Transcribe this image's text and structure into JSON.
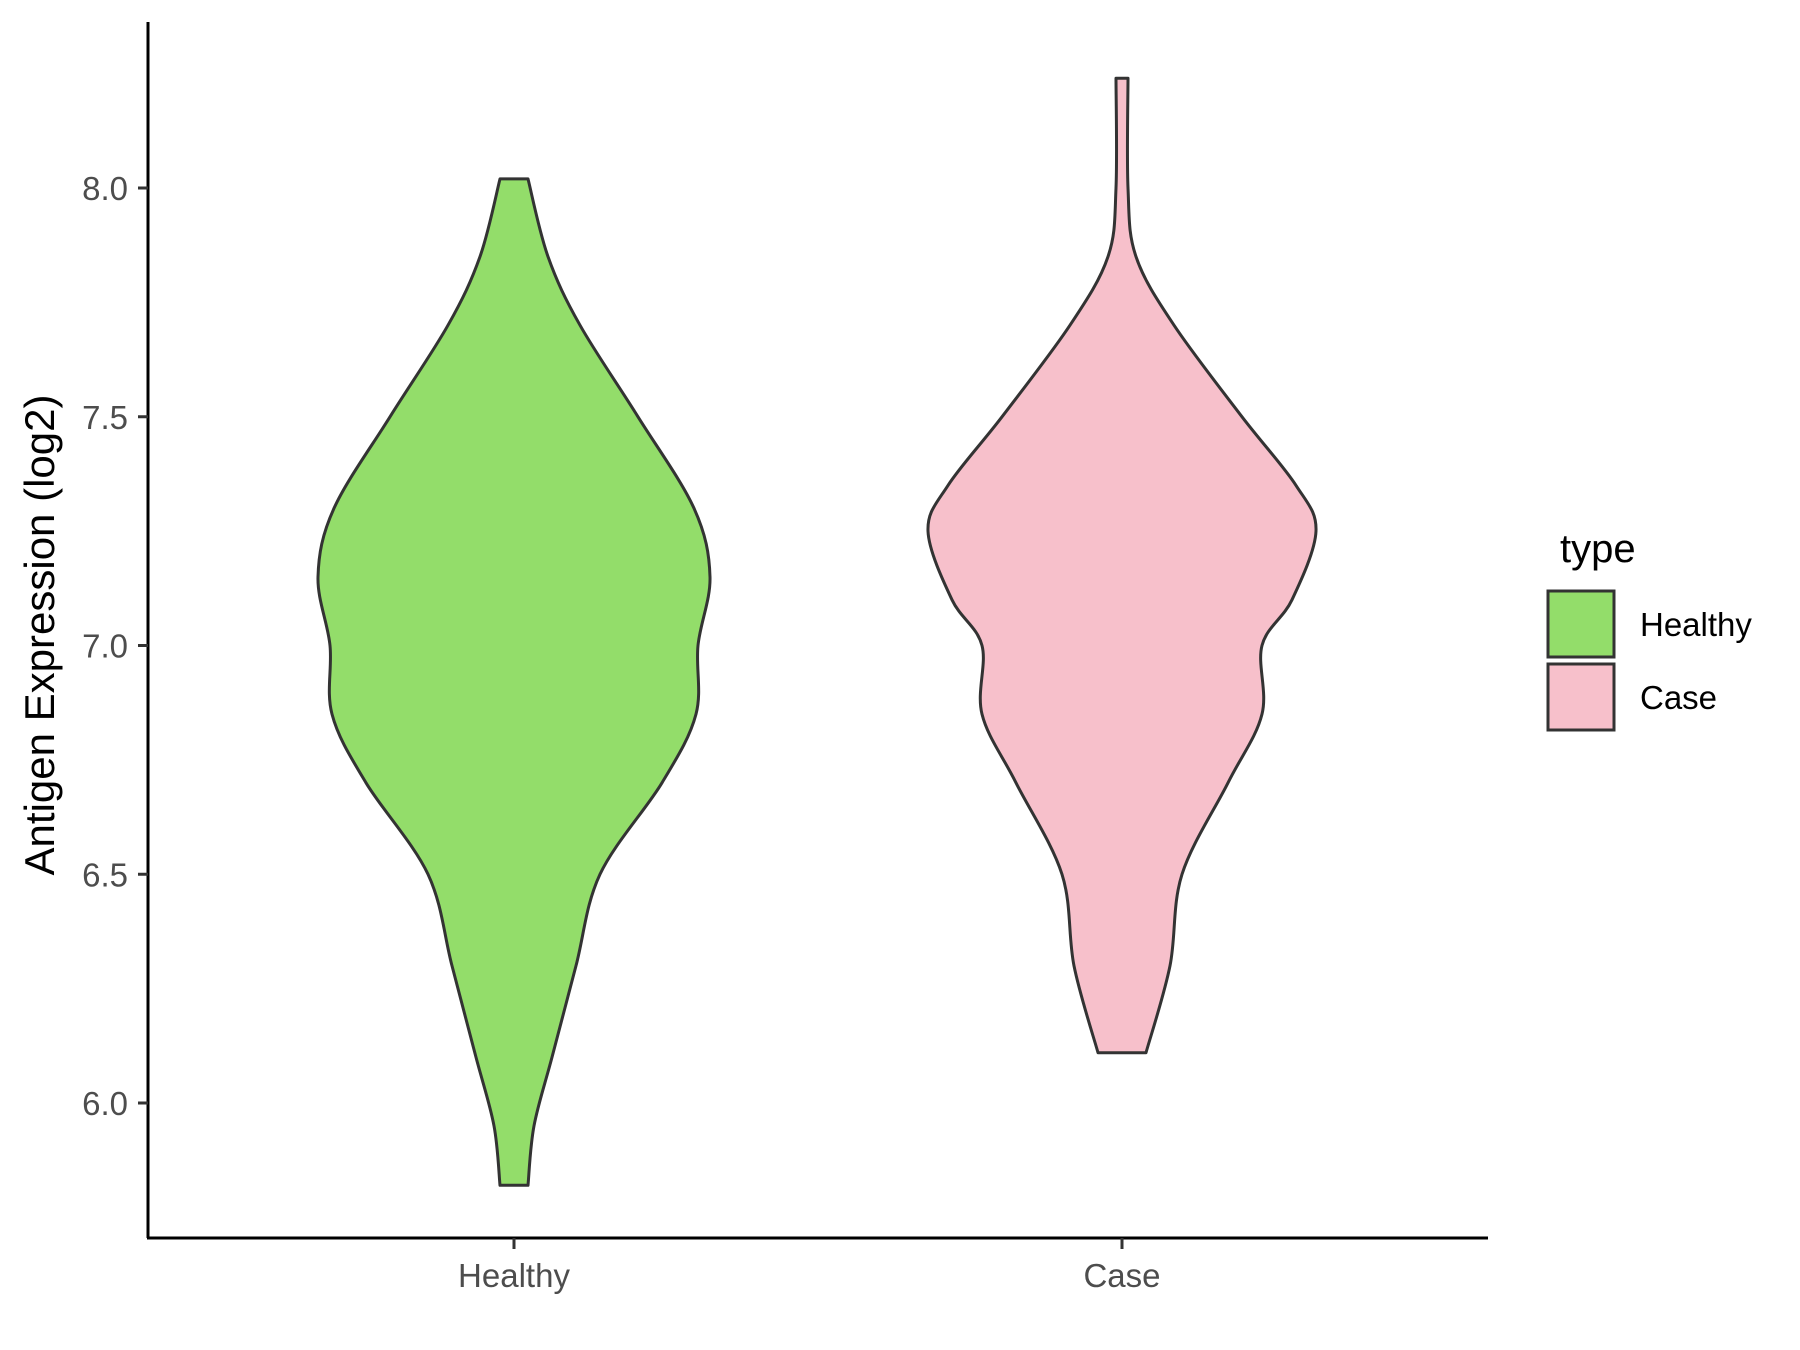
{
  "chart_data": {
    "type": "violin",
    "xlabel": "",
    "ylabel": "Antigen Expression (log2)",
    "ylim": [
      5.7,
      8.35
    ],
    "y_ticks": [
      "6.0",
      "6.5",
      "7.0",
      "7.5",
      "8.0"
    ],
    "categories": [
      "Healthy",
      "Case"
    ],
    "grid": false,
    "legend": {
      "title": "type",
      "position": "right",
      "entries": [
        {
          "label": "Healthy",
          "color": "#93dd6a"
        },
        {
          "label": "Case",
          "color": "#f7c0cb"
        }
      ]
    },
    "series": [
      {
        "name": "Healthy",
        "color": "#93dd6a",
        "min": 5.82,
        "max": 8.02,
        "profile": [
          [
            8.02,
            0.07
          ],
          [
            7.85,
            0.17
          ],
          [
            7.7,
            0.33
          ],
          [
            7.5,
            0.62
          ],
          [
            7.3,
            0.9
          ],
          [
            7.15,
            0.98
          ],
          [
            7.0,
            0.92
          ],
          [
            6.85,
            0.91
          ],
          [
            6.7,
            0.74
          ],
          [
            6.5,
            0.43
          ],
          [
            6.3,
            0.31
          ],
          [
            6.1,
            0.19
          ],
          [
            5.95,
            0.1
          ],
          [
            5.82,
            0.07
          ]
        ]
      },
      {
        "name": "Case",
        "color": "#f7c0cb",
        "min": 6.11,
        "max": 8.24,
        "profile": [
          [
            8.24,
            0.03
          ],
          [
            8.0,
            0.03
          ],
          [
            7.85,
            0.07
          ],
          [
            7.7,
            0.26
          ],
          [
            7.5,
            0.6
          ],
          [
            7.35,
            0.87
          ],
          [
            7.25,
            0.97
          ],
          [
            7.1,
            0.85
          ],
          [
            7.0,
            0.7
          ],
          [
            6.85,
            0.7
          ],
          [
            6.7,
            0.53
          ],
          [
            6.5,
            0.3
          ],
          [
            6.3,
            0.24
          ],
          [
            6.11,
            0.12
          ]
        ]
      }
    ]
  }
}
